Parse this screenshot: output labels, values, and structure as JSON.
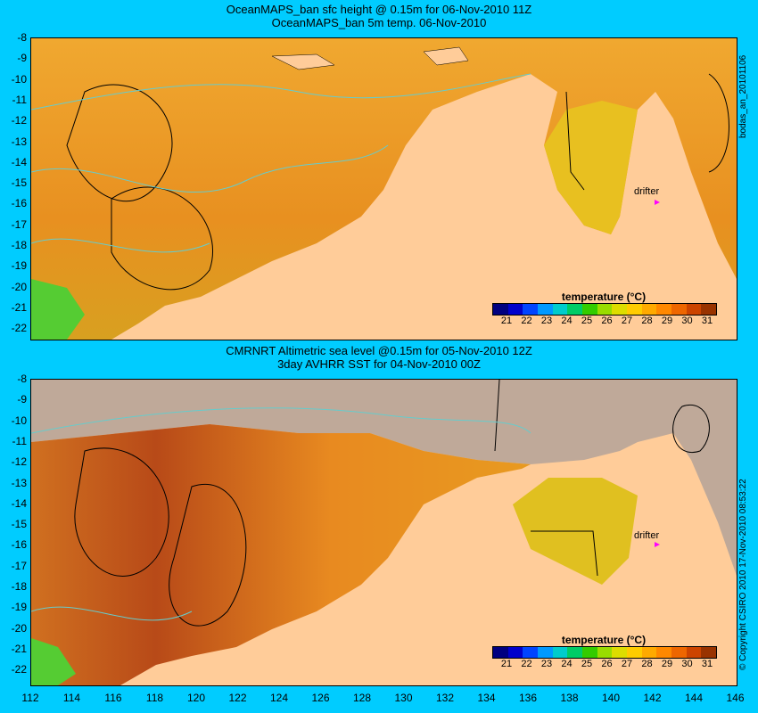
{
  "top": {
    "title1": "OceanMAPS_ban sfc height @ 0.15m for 06-Nov-2010 11Z",
    "title2": "OceanMAPS_ban 5m temp. 06-Nov-2010",
    "side_label": "bodas_an_20101106",
    "drifter_label": "drifter"
  },
  "bottom": {
    "title1": "CMRNRT Altimetric sea level  @0.15m  for 05-Nov-2010 12Z",
    "title2": "3day AVHRR SST for 04-Nov-2010 00Z",
    "side_label": "© Copyright CSIRO 2010   17-Nov-2010 08:53:22",
    "drifter_label": "drifter"
  },
  "legend": {
    "title": "temperature (°C)",
    "labels": [
      "21",
      "22",
      "23",
      "24",
      "25",
      "26",
      "27",
      "28",
      "29",
      "30",
      "31"
    ],
    "colors": [
      "#000080",
      "#0000cc",
      "#0044ff",
      "#0099ff",
      "#00cccc",
      "#00cc66",
      "#33cc00",
      "#99dd00",
      "#dddd00",
      "#ffcc00",
      "#ffaa00",
      "#ff8800",
      "#ee6600",
      "#cc4400",
      "#993300"
    ]
  },
  "axes": {
    "y_ticks": [
      "-8",
      "-9",
      "-10",
      "-11",
      "-12",
      "-13",
      "-14",
      "-15",
      "-16",
      "-17",
      "-18",
      "-19",
      "-20",
      "-21",
      "-22"
    ],
    "x_ticks": [
      "112",
      "114",
      "116",
      "118",
      "120",
      "122",
      "124",
      "126",
      "128",
      "130",
      "132",
      "134",
      "136",
      "138",
      "140",
      "142",
      "144",
      "146"
    ]
  },
  "colors": {
    "background": "#00ccff",
    "land": "#ffcc99",
    "ocean_warm": "#f0a020",
    "coast_gray": "#bfa999"
  }
}
